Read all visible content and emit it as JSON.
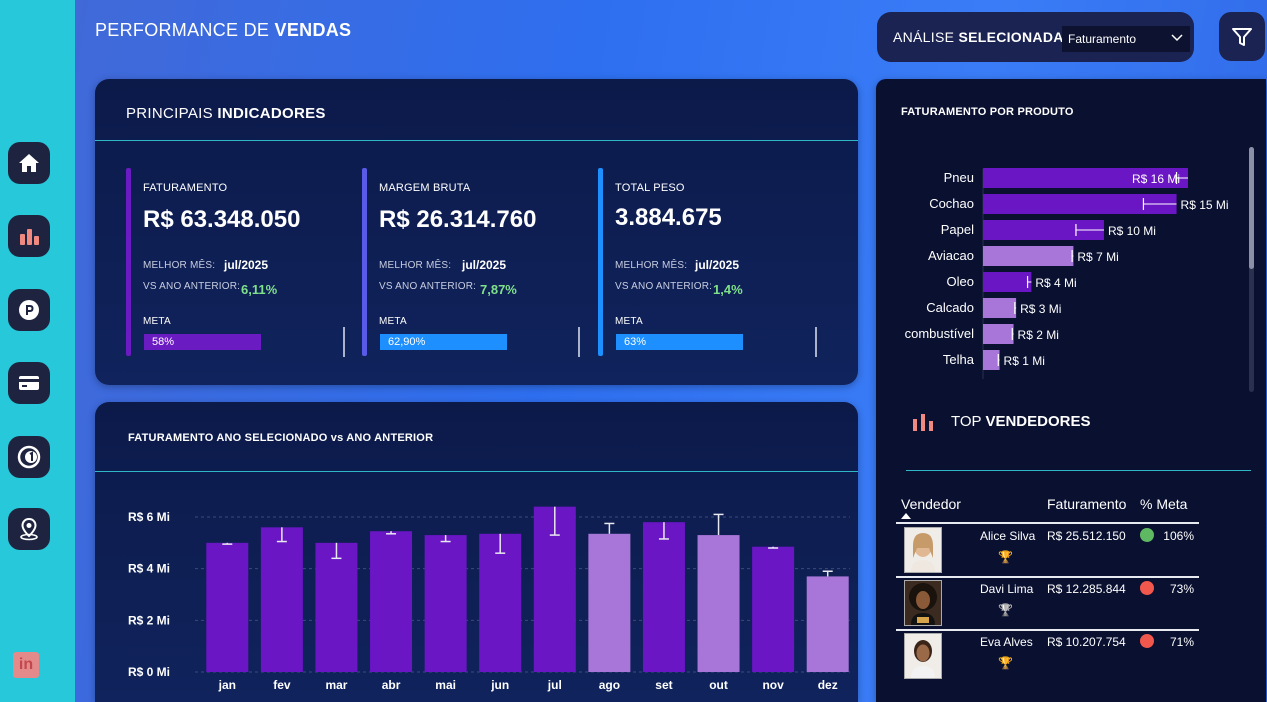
{
  "header": {
    "title_light": "PERFORMANCE DE ",
    "title_bold": "VENDAS",
    "analysis_label_light": "ANÁLISE ",
    "analysis_label_bold": "SELECIONADA:",
    "analysis_value": "Faturamento"
  },
  "sidebar": {
    "items": [
      "home-icon",
      "bar-chart-icon",
      "parking-icon",
      "card-icon",
      "number-one-icon",
      "location-pin-icon"
    ],
    "linkedin": "in"
  },
  "kpi_panel": {
    "heading_light": "PRINCIPAIS ",
    "heading_bold": "INDICADORES",
    "cards": [
      {
        "label": "FATURAMENTO",
        "value": "R$ 63.348.050",
        "best_month_label": "MELHOR MÊS:",
        "best_month": "jul/2025",
        "vs_label": "VS ANO ANTERIOR:",
        "vs_value": "6,11%",
        "meta_label": "META",
        "meta_value": "58%",
        "meta_fraction": 0.58,
        "color": "#6a1bc2"
      },
      {
        "label": "MARGEM BRUTA",
        "value": "R$ 26.314.760",
        "best_month_label": "MELHOR MÊS:",
        "best_month": "jul/2025",
        "vs_label": "VS ANO ANTERIOR:",
        "vs_value": "7,87%",
        "meta_label": "META",
        "meta_value": "62,90%",
        "meta_fraction": 0.629,
        "color": "#1e8fff"
      },
      {
        "label": "TOTAL PESO",
        "value": "3.884.675",
        "best_month_label": "MELHOR MÊS:",
        "best_month": "jul/2025",
        "vs_label": "VS ANO ANTERIOR:",
        "vs_value": "1,4%",
        "meta_label": "META",
        "meta_value": "63%",
        "meta_fraction": 0.63,
        "color": "#1e8fff"
      }
    ]
  },
  "chart_panel": {
    "heading": "FATURAMENTO ANO SELECIONADO vs ANO ANTERIOR"
  },
  "chart_data": [
    {
      "type": "bar",
      "title": "FATURAMENTO ANO SELECIONADO vs ANO ANTERIOR",
      "categories": [
        "jan",
        "fev",
        "mar",
        "abr",
        "mai",
        "jun",
        "jul",
        "ago",
        "set",
        "out",
        "nov",
        "dez"
      ],
      "values": [
        5.0,
        5.6,
        5.0,
        5.45,
        5.3,
        5.35,
        6.4,
        5.35,
        5.8,
        5.3,
        4.85,
        3.7
      ],
      "previous_year": [
        4.95,
        5.05,
        4.4,
        5.35,
        5.05,
        4.6,
        5.3,
        5.75,
        5.15,
        6.1,
        4.8,
        3.9
      ],
      "highlight": [
        true,
        true,
        true,
        true,
        true,
        true,
        true,
        false,
        true,
        false,
        true,
        false
      ],
      "y_ticks": [
        "R$ 0 Mi",
        "R$ 2 Mi",
        "R$ 4 Mi",
        "R$ 6 Mi"
      ],
      "ylim": [
        0,
        6.5
      ],
      "colors": {
        "primary": "#6a16c4",
        "secondary": "#a876d8"
      }
    },
    {
      "type": "bar",
      "title": "FATURAMENTO POR PRODUTO",
      "orientation": "horizontal",
      "categories": [
        "Pneu",
        "Cochao",
        "Papel",
        "Aviacao",
        "Oleo",
        "Calcado",
        "combustível",
        "Telha"
      ],
      "values": [
        16.1,
        15.2,
        9.5,
        7.1,
        3.8,
        2.6,
        2.4,
        1.3
      ],
      "previous_year": [
        15.2,
        12.6,
        7.3,
        7.0,
        3.5,
        2.5,
        2.3,
        1.2
      ],
      "data_labels": [
        "R$ 16 Mi",
        "R$ 15 Mi",
        "R$ 10 Mi",
        "R$ 7 Mi",
        "R$ 4 Mi",
        "R$ 3 Mi",
        "R$ 2 Mi",
        "R$ 1 Mi"
      ],
      "highlight": [
        true,
        true,
        true,
        false,
        true,
        false,
        false,
        false
      ],
      "xlim": [
        0,
        18
      ],
      "colors": {
        "primary": "#6a16c4",
        "secondary": "#a876d8"
      }
    }
  ],
  "right_panel": {
    "heading": "FATURAMENTO POR PRODUTO",
    "top_heading_light": "TOP ",
    "top_heading_bold": "VENDEDORES",
    "table": {
      "columns": [
        "Vendedor",
        "Faturamento",
        "% Meta"
      ],
      "rows": [
        {
          "name": "Alice Silva",
          "value": "R$ 25.512.150",
          "pct": "106%",
          "status_color": "#4caf50",
          "trophy": "🏆"
        },
        {
          "name": "Davi Lima",
          "value": "R$ 12.285.844",
          "pct": "73%",
          "status_color": "#f0584e",
          "trophy": "🏆"
        },
        {
          "name": "Eva Alves",
          "value": "R$ 10.207.754",
          "pct": "71%",
          "status_color": "#f0584e",
          "trophy": "🏆"
        }
      ]
    }
  }
}
